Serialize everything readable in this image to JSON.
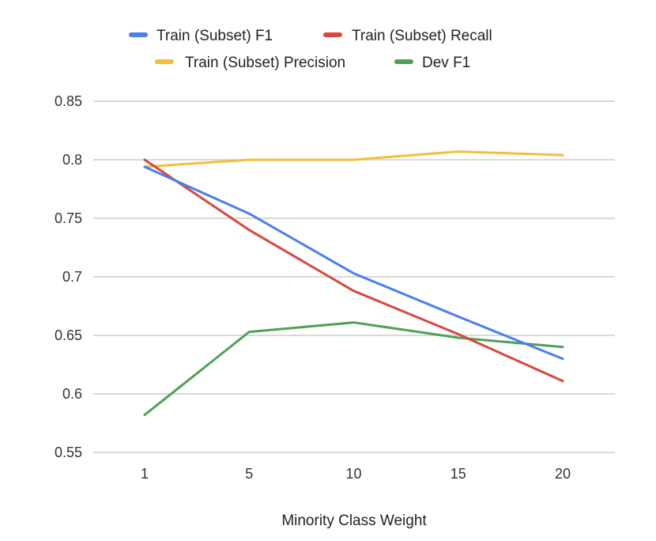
{
  "chart_data": {
    "type": "line",
    "title": "",
    "xlabel": "Minority Class Weight",
    "ylabel": "",
    "categories": [
      "1",
      "5",
      "10",
      "15",
      "20"
    ],
    "ylim": [
      0.55,
      0.85
    ],
    "yticks": [
      "0.55",
      "0.6",
      "0.65",
      "0.7",
      "0.75",
      "0.8",
      "0.85"
    ],
    "grid": true,
    "legend_position": "top",
    "series": [
      {
        "name": "Train (Subset) F1",
        "color": "#4a7ff0",
        "values": [
          0.794,
          0.754,
          0.703,
          0.666,
          0.63
        ]
      },
      {
        "name": "Train (Subset) Recall",
        "color": "#d9473d",
        "values": [
          0.8,
          0.74,
          0.688,
          0.651,
          0.611
        ]
      },
      {
        "name": "Train (Subset) Precision",
        "color": "#f4be3c",
        "values": [
          0.794,
          0.8,
          0.8,
          0.807,
          0.804
        ]
      },
      {
        "name": "Dev F1",
        "color": "#4fa157",
        "values": [
          0.582,
          0.653,
          0.661,
          0.648,
          0.64
        ]
      }
    ]
  }
}
